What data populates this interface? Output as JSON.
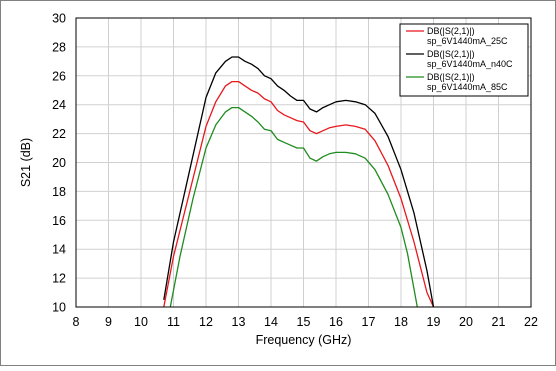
{
  "chart_data": {
    "type": "line",
    "title": "",
    "xlabel": "Frequency (GHz)",
    "ylabel": "S21 (dB)",
    "xlim": [
      8,
      22
    ],
    "ylim": [
      10,
      30
    ],
    "xticks": [
      "8",
      "9",
      "10",
      "11",
      "12",
      "13",
      "14",
      "15",
      "16",
      "17",
      "18",
      "19",
      "20",
      "21",
      "22"
    ],
    "yticks": [
      "10",
      "12",
      "14",
      "16",
      "18",
      "20",
      "22",
      "24",
      "26",
      "28",
      "30"
    ],
    "grid": true,
    "legend_position": "top-right",
    "series": [
      {
        "name": "DB(|S(2,1)|)",
        "label_line2": "sp_6V1440mA_25C",
        "color": "#e8181d",
        "x": [
          10.7,
          11.0,
          11.5,
          12.0,
          12.3,
          12.6,
          12.8,
          13.0,
          13.2,
          13.4,
          13.6,
          13.8,
          14.0,
          14.2,
          14.4,
          14.6,
          14.8,
          15.0,
          15.2,
          15.4,
          15.6,
          15.8,
          16.0,
          16.3,
          16.6,
          16.9,
          17.2,
          17.6,
          18.0,
          18.4,
          18.8,
          19.0
        ],
        "y": [
          10.0,
          13.5,
          18.0,
          22.5,
          24.2,
          25.3,
          25.6,
          25.6,
          25.3,
          25.0,
          24.8,
          24.4,
          24.2,
          23.6,
          23.3,
          23.1,
          22.9,
          22.8,
          22.2,
          22.0,
          22.2,
          22.4,
          22.5,
          22.6,
          22.5,
          22.3,
          21.5,
          19.8,
          17.5,
          14.5,
          11.0,
          10.0
        ]
      },
      {
        "name": "DB(|S(2,1)|)",
        "label_line2": "sp_6V1440mA_n40C",
        "color": "#000000",
        "x": [
          10.7,
          11.0,
          11.5,
          12.0,
          12.3,
          12.6,
          12.8,
          13.0,
          13.2,
          13.4,
          13.6,
          13.8,
          14.0,
          14.2,
          14.4,
          14.6,
          14.8,
          15.0,
          15.2,
          15.4,
          15.6,
          15.8,
          16.0,
          16.3,
          16.6,
          16.9,
          17.2,
          17.6,
          18.0,
          18.4,
          18.8,
          19.0
        ],
        "y": [
          10.5,
          14.5,
          19.5,
          24.5,
          26.2,
          27.0,
          27.3,
          27.3,
          27.0,
          26.8,
          26.5,
          26.0,
          25.8,
          25.3,
          25.0,
          24.6,
          24.3,
          24.3,
          23.7,
          23.5,
          23.8,
          24.0,
          24.2,
          24.3,
          24.2,
          24.0,
          23.4,
          21.8,
          19.5,
          16.5,
          12.5,
          10.0
        ]
      },
      {
        "name": "DB(|S(2,1)|)",
        "label_line2": "sp_6V1440mA_85C",
        "color": "#1e8c1e",
        "x": [
          10.9,
          11.2,
          11.6,
          12.0,
          12.3,
          12.6,
          12.8,
          13.0,
          13.2,
          13.4,
          13.6,
          13.8,
          14.0,
          14.2,
          14.4,
          14.6,
          14.8,
          15.0,
          15.2,
          15.4,
          15.6,
          15.8,
          16.0,
          16.3,
          16.6,
          16.9,
          17.2,
          17.6,
          18.0,
          18.2,
          18.5
        ],
        "y": [
          10.0,
          13.5,
          17.5,
          21.0,
          22.6,
          23.5,
          23.8,
          23.8,
          23.5,
          23.2,
          22.8,
          22.3,
          22.2,
          21.6,
          21.4,
          21.2,
          21.0,
          21.0,
          20.3,
          20.1,
          20.4,
          20.6,
          20.7,
          20.7,
          20.6,
          20.3,
          19.5,
          17.8,
          15.5,
          13.7,
          10.0
        ]
      }
    ]
  }
}
